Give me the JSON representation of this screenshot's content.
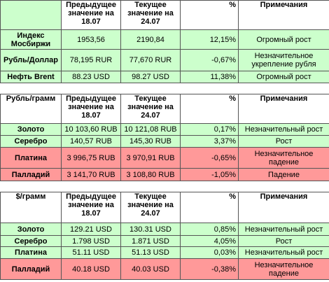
{
  "tables": [
    {
      "header": {
        "columns": [
          "Предыдущее значение на 18.07",
          "Текущее значение на 24.07",
          "%",
          "Примечания"
        ]
      },
      "rows": [
        [
          "Индекс Мосбиржи",
          "1953,56",
          "2190,84",
          "12,15%",
          "Огромный рост"
        ],
        [
          "Рубль/Доллар",
          "78,195 RUR",
          "77,670 RUR",
          "-0,67%",
          "Незначительное укрепление рубля"
        ],
        [
          "Нефть Brent",
          "88.23 USD",
          "98.27 USD",
          "11,38%",
          "Огромный рост"
        ]
      ]
    },
    {
      "header": {
        "corner": "Рубль/грамм",
        "columns": [
          "Предыдущее значение на 18.07",
          "Текущее значение на 24.07",
          "%",
          "Примечания"
        ]
      },
      "rows": [
        [
          "Золото",
          "10 103,60 RUB",
          "10 121,08 RUB",
          "0,17%",
          "Незначительный рост"
        ],
        [
          "Серебро",
          "140,57 RUB",
          "145,30 RUB",
          "3,37%",
          "Рост"
        ],
        [
          "Платина",
          "3 996,75 RUB",
          "3 970,91 RUB",
          "-0,65%",
          "Незначительное падение"
        ],
        [
          "Палладий",
          "3 141,70 RUB",
          "3 108,80 RUB",
          "-1,05%",
          "Падение"
        ]
      ]
    },
    {
      "header": {
        "corner": "$/грамм",
        "columns": [
          "Предыдущее значение на 18.07",
          "Текущее значение на 24.07",
          "%",
          "Примечания"
        ]
      },
      "rows": [
        [
          "Золото",
          "129.21 USD",
          "130.31 USD",
          "0,85%",
          "Незначительный рост"
        ],
        [
          "Серебро",
          "1.798 USD",
          "1.871 USD",
          "4,05%",
          "Рост"
        ],
        [
          "Платина",
          "51.11 USD",
          "51.13 USD",
          "0,03%",
          "Незначительный рост"
        ],
        [
          "Палладий",
          "40.18 USD",
          "40.03 USD",
          "-0,38%",
          "Незначительное падение"
        ]
      ]
    }
  ]
}
